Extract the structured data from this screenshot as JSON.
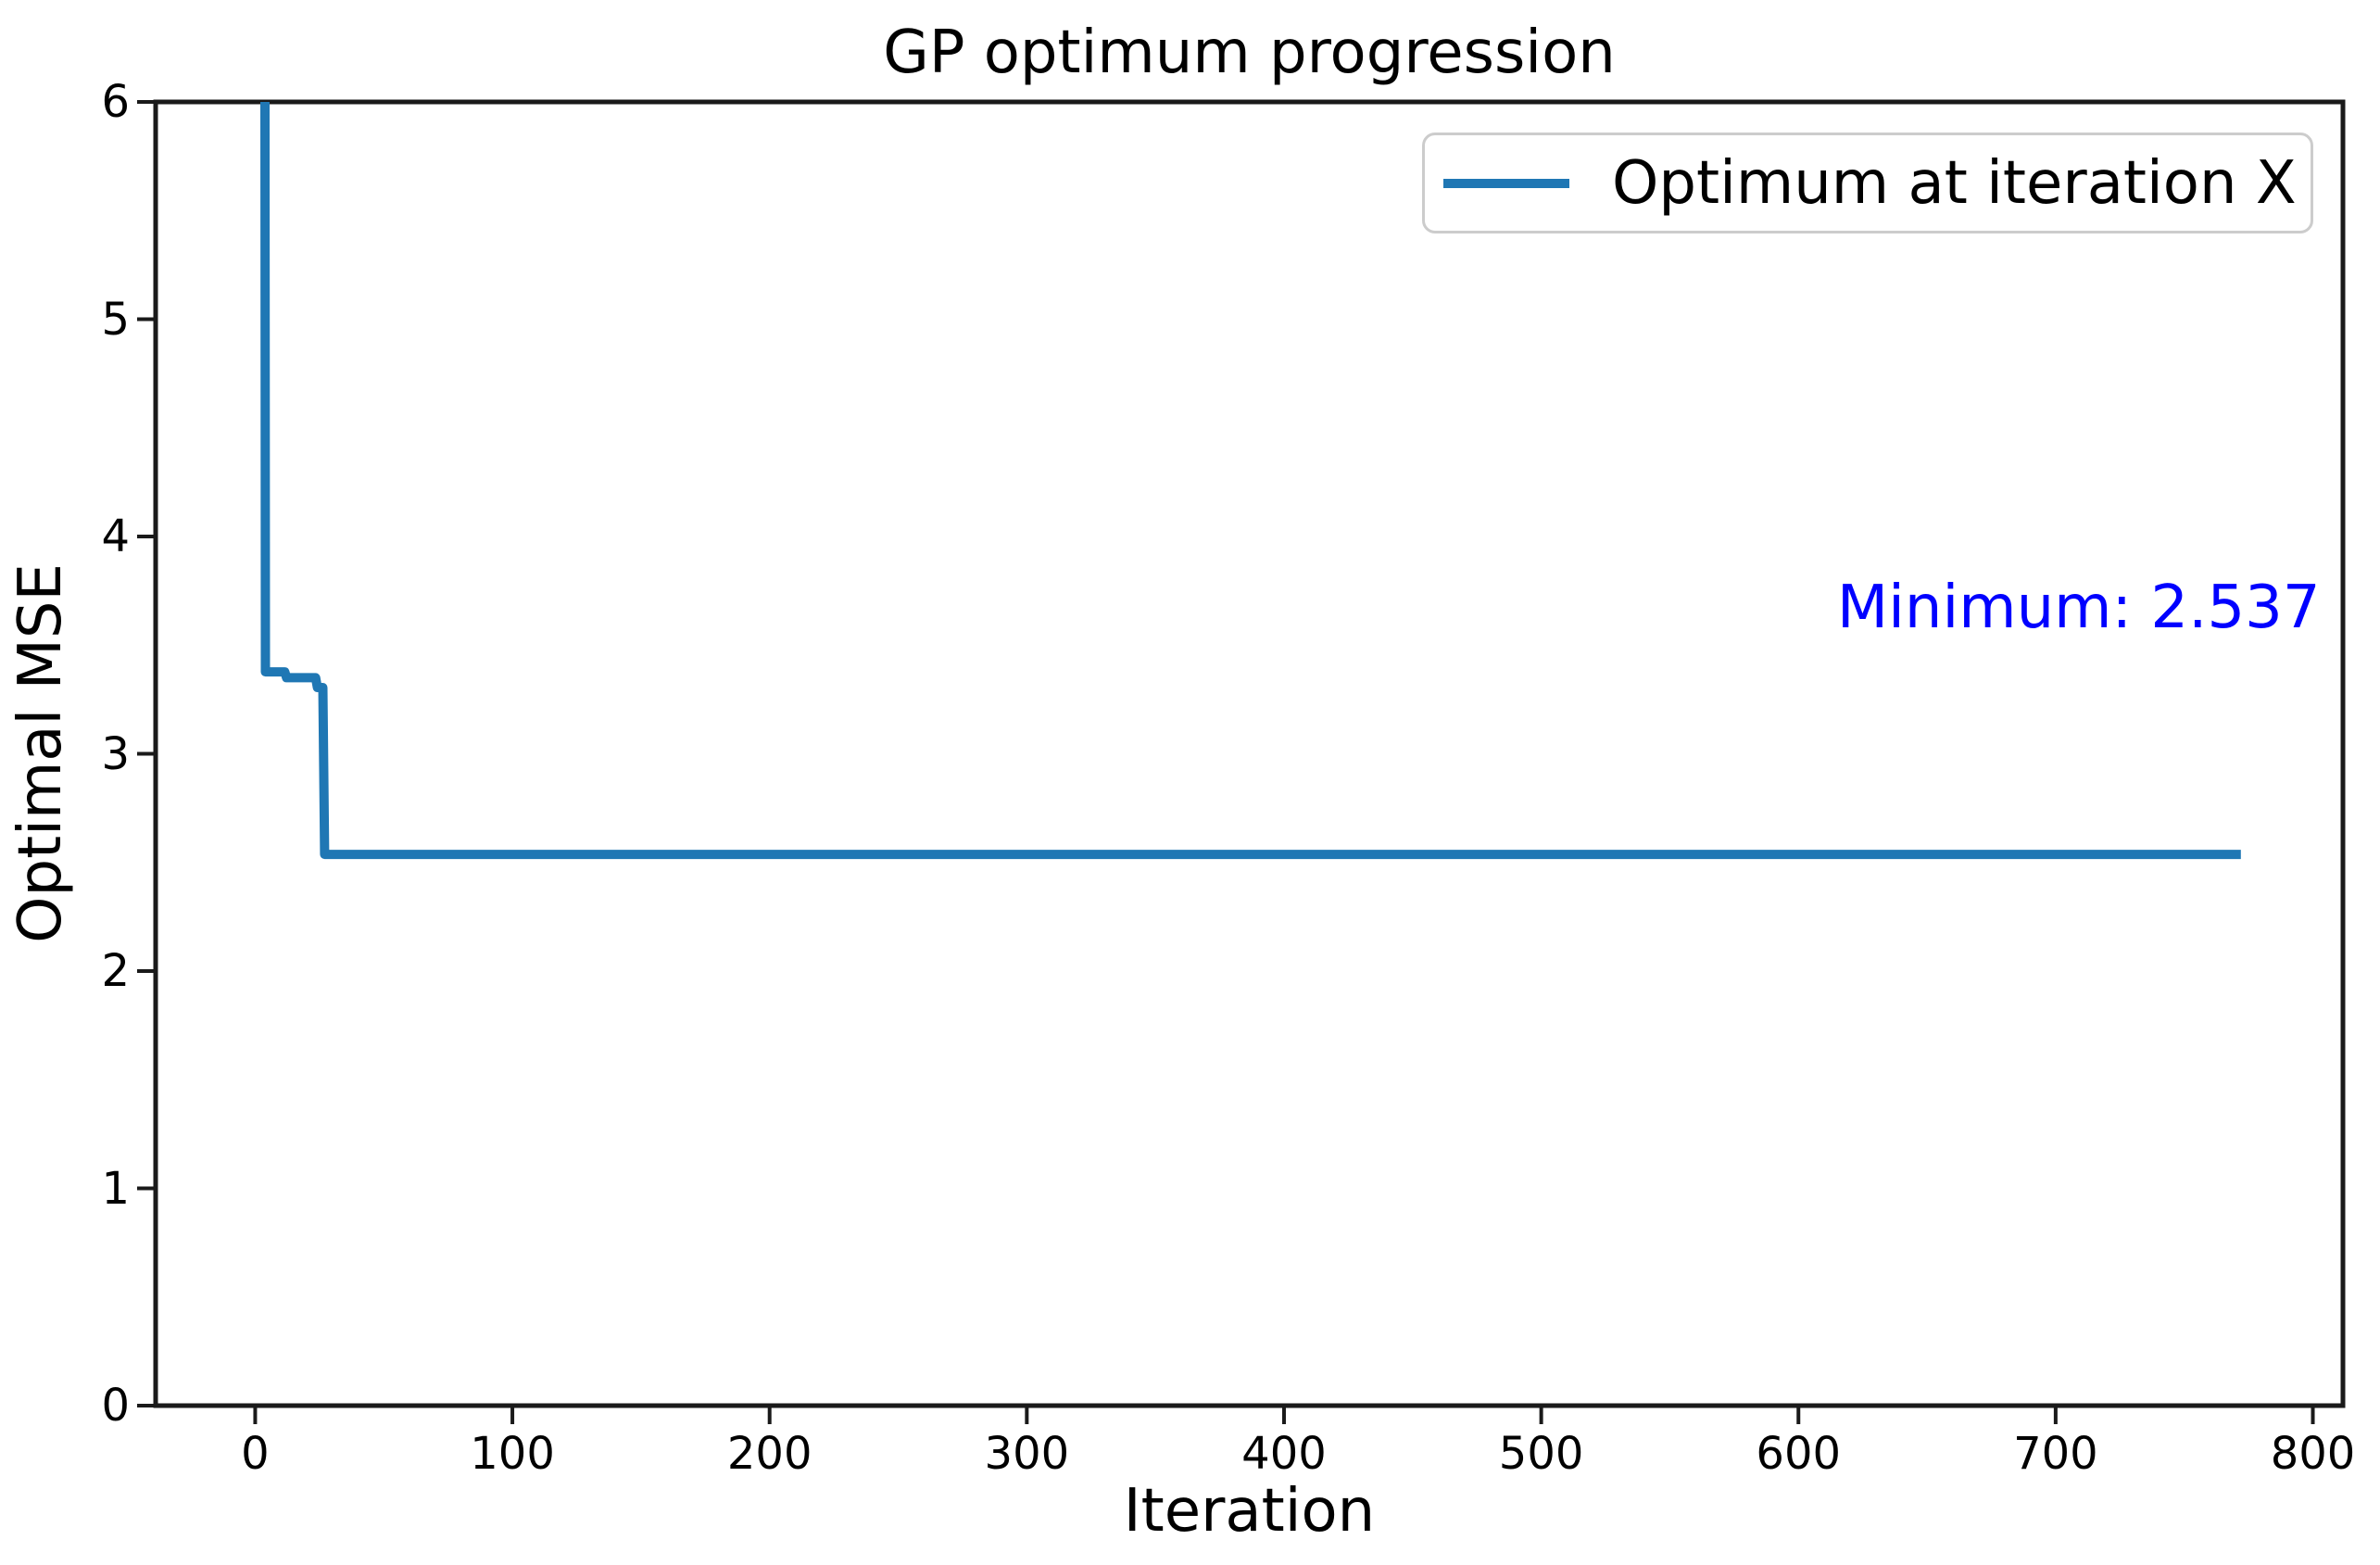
{
  "colors": {
    "background": "#ffffff",
    "axis": "#1a1a1a",
    "text": "#000000",
    "legend_border": "#cccccc",
    "line": "#1f77b4",
    "annotation": "#0000ff"
  },
  "chart_data": {
    "type": "line",
    "title": "GP optimum progression",
    "xlabel": "Iteration",
    "ylabel": "Optimal MSE",
    "xlim": [
      -38.7,
      811.7
    ],
    "ylim": [
      0,
      6
    ],
    "x_ticks": [
      0,
      100,
      200,
      300,
      400,
      500,
      600,
      700,
      800
    ],
    "y_ticks": [
      0,
      1,
      2,
      3,
      4,
      5,
      6
    ],
    "grid": false,
    "legend": {
      "position": "upper right",
      "entries": [
        {
          "label": "Optimum at iteration X",
          "color": "#1f77b4"
        }
      ]
    },
    "annotation": {
      "text": "Minimum: 2.537",
      "color": "#0000ff",
      "x": 615,
      "y": 3.67
    },
    "series": [
      {
        "name": "Optimum at iteration X",
        "color": "#1f77b4",
        "line_width": 10,
        "points": [
          [
            3.8,
            6.0
          ],
          [
            4.0,
            3.377
          ],
          [
            11.5,
            3.377
          ],
          [
            12.2,
            3.35
          ],
          [
            23.5,
            3.35
          ],
          [
            24.2,
            3.305
          ],
          [
            26.3,
            3.305
          ],
          [
            27.0,
            2.537
          ],
          [
            772.0,
            2.537
          ]
        ]
      }
    ]
  }
}
